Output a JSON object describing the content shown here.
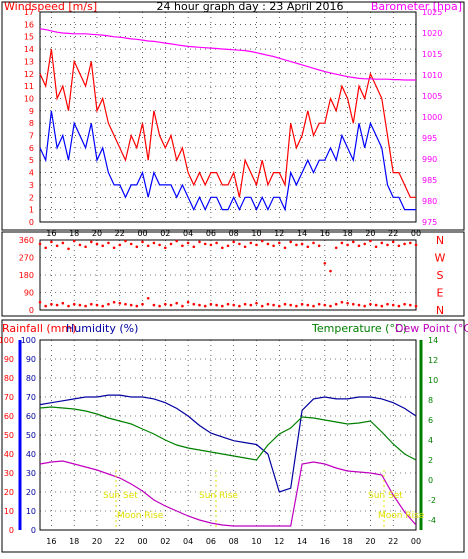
{
  "header": {
    "left_label": "Windspeed [m/s]",
    "center_title": "24 hour graph day : 23 April 2016",
    "right_label": "Barometer [hpa]"
  },
  "colors": {
    "frame": "#000000",
    "grid": "#000000",
    "wind_gust": "#ff0000",
    "wind_avg": "#0000ff",
    "barometer": "#ff00ff",
    "wind_dir": "#ff0000",
    "rain": "#ff0000",
    "humidity": "#0000a0",
    "temperature": "#008000",
    "dew_point": "#c000c0",
    "sun_moon": "#e0e000",
    "left_axis_bar": "#0000ff",
    "right_axis_bar": "#008000"
  },
  "time_ticks": [
    "16",
    "18",
    "20",
    "22",
    "00",
    "02",
    "04",
    "06",
    "08",
    "10",
    "12",
    "14",
    "16",
    "18",
    "20",
    "22",
    "00"
  ],
  "panels": {
    "wind": {
      "left_ticks": [
        "0",
        "1",
        "2",
        "3",
        "4",
        "5",
        "6",
        "7",
        "8",
        "9",
        "10",
        "11",
        "12",
        "13",
        "14",
        "15",
        "16",
        "17"
      ],
      "right_ticks": [
        "975",
        "980",
        "985",
        "990",
        "995",
        "1000",
        "1005",
        "1010",
        "1015",
        "1020",
        "1025"
      ]
    },
    "direction": {
      "left_ticks": [
        "0",
        "90",
        "180",
        "270",
        "360"
      ],
      "compass": [
        "N",
        "W",
        "S",
        "E",
        "N"
      ]
    },
    "lower": {
      "left_label": "Rainfall (mm)",
      "humidity_label": "Humidity (%)",
      "temp_label": "Temperature (°C)",
      "dew_label": "Dew Point (°C)",
      "rain_ticks": [
        "0",
        "10",
        "20",
        "30",
        "40",
        "50",
        "60",
        "70",
        "80",
        "90",
        "100"
      ],
      "hum_ticks": [
        "0",
        "10",
        "20",
        "30",
        "40",
        "50",
        "60",
        "70",
        "80",
        "90",
        "100"
      ],
      "temp_ticks": [
        "-4",
        "-2",
        "0",
        "2",
        "4",
        "6",
        "8",
        "10",
        "12",
        "14"
      ],
      "sun_set_label": "Sun Set",
      "sun_rise_label": "Sun Rise",
      "moon_rise_label": "Moon Rise"
    }
  },
  "chart_data": [
    {
      "type": "line",
      "panel": "wind",
      "x_hours": [
        15,
        15.5,
        16,
        16.5,
        17,
        17.5,
        18,
        18.5,
        19,
        19.5,
        20,
        20.5,
        21,
        21.5,
        22,
        22.5,
        23,
        23.5,
        24,
        24.5,
        25,
        25.5,
        26,
        26.5,
        27,
        27.5,
        28,
        28.5,
        29,
        29.5,
        30,
        30.5,
        31,
        31.5,
        32,
        32.5,
        33,
        33.5,
        34,
        34.5,
        35,
        35.5,
        36,
        36.5,
        37,
        37.5,
        38,
        38.5,
        39,
        39.5,
        40,
        40.5,
        41,
        41.5,
        42,
        42.5,
        43,
        43.5,
        44,
        44.5,
        45,
        45.5,
        46,
        46.5,
        47,
        47.5,
        48
      ],
      "series": [
        {
          "name": "Gust",
          "values": [
            12,
            11,
            14,
            10,
            11,
            9,
            13,
            12,
            11,
            13,
            9,
            10,
            8,
            7,
            6,
            5,
            7,
            6,
            8,
            5,
            9,
            7,
            6,
            7,
            5,
            6,
            4,
            3,
            4,
            3,
            4,
            4,
            3,
            3,
            4,
            2,
            5,
            4,
            3,
            5,
            3,
            4,
            4,
            3,
            8,
            6,
            7,
            9,
            7,
            8,
            8,
            10,
            9,
            11,
            10,
            8,
            11,
            10,
            12,
            11,
            10,
            7,
            4,
            4,
            3,
            2,
            2
          ]
        },
        {
          "name": "Average",
          "values": [
            6,
            5,
            9,
            6,
            7,
            5,
            8,
            7,
            6,
            8,
            5,
            6,
            4,
            3,
            3,
            2,
            3,
            3,
            4,
            2,
            4,
            3,
            3,
            3,
            2,
            3,
            2,
            1,
            2,
            1,
            2,
            2,
            1,
            1,
            2,
            1,
            2,
            2,
            1,
            2,
            1,
            2,
            2,
            1,
            4,
            3,
            4,
            5,
            4,
            5,
            5,
            6,
            5,
            7,
            6,
            5,
            8,
            6,
            8,
            7,
            6,
            3,
            2,
            2,
            1,
            1,
            1
          ]
        },
        {
          "name": "Barometer",
          "axis": "right",
          "values": [
            1021,
            1020.8,
            1020.5,
            1020.2,
            1020,
            1019.9,
            1019.8,
            1019.8,
            1019.8,
            1019.7,
            1019.6,
            1019.5,
            1019.3,
            1019.1,
            1019,
            1018.8,
            1018.6,
            1018.5,
            1018.3,
            1018.1,
            1018,
            1017.8,
            1017.6,
            1017.4,
            1017.2,
            1017,
            1016.8,
            1016.7,
            1016.6,
            1016.5,
            1016.4,
            1016.3,
            1016.2,
            1016.1,
            1016,
            1015.9,
            1015.8,
            1015.6,
            1015.3,
            1015,
            1014.7,
            1014.4,
            1014,
            1013.6,
            1013.2,
            1012.8,
            1012.4,
            1012,
            1011.6,
            1011.2,
            1010.8,
            1010.5,
            1010.2,
            1009.9,
            1009.6,
            1009.4,
            1009.2,
            1009.1,
            1009.1,
            1009,
            1009,
            1009,
            1008.9,
            1008.9,
            1008.8,
            1008.8,
            1008.8
          ]
        }
      ],
      "ylim": [
        0,
        17
      ],
      "y2lim": [
        975,
        1025
      ]
    },
    {
      "type": "scatter",
      "panel": "direction",
      "x_hours": [
        15,
        15.5,
        16,
        16.5,
        17,
        17.5,
        18,
        18.5,
        19,
        19.5,
        20,
        20.5,
        21,
        21.5,
        22,
        22.5,
        23,
        23.5,
        24,
        24.5,
        25,
        25.5,
        26,
        26.5,
        27,
        27.5,
        28,
        28.5,
        29,
        29.5,
        30,
        30.5,
        31,
        31.5,
        32,
        32.5,
        33,
        33.5,
        34,
        34.5,
        35,
        35.5,
        36,
        36.5,
        37,
        37.5,
        38,
        38.5,
        39,
        39.5,
        40,
        40.5,
        41,
        41.5,
        42,
        42.5,
        43,
        43.5,
        44,
        44.5,
        45,
        45.5,
        46,
        46.5,
        47,
        47.5,
        48
      ],
      "series": [
        {
          "name": "Direction",
          "values": [
            340,
            320,
            350,
            330,
            345,
            315,
            355,
            335,
            325,
            350,
            340,
            330,
            345,
            320,
            335,
            355,
            340,
            325,
            350,
            330,
            345,
            335,
            320,
            340,
            355,
            330,
            345,
            325,
            350,
            340,
            335,
            345,
            320,
            330,
            350,
            340,
            325,
            345,
            335,
            355,
            340,
            330,
            345,
            320,
            350,
            335,
            340,
            325,
            345,
            330,
            240,
            200,
            320,
            345,
            335,
            350,
            330,
            340,
            355,
            325,
            345,
            335,
            350,
            330,
            340,
            345,
            335
          ]
        },
        {
          "name": "Direction-low",
          "values": [
            40,
            20,
            30,
            25,
            35,
            20,
            30,
            25,
            20,
            30,
            25,
            20,
            30,
            40,
            35,
            30,
            25,
            20,
            30,
            60,
            25,
            20,
            30,
            25,
            35,
            20,
            40,
            30,
            25,
            20,
            30,
            25,
            20,
            30,
            25,
            20,
            30,
            25,
            35,
            20,
            30,
            25,
            20,
            30,
            25,
            20,
            30,
            25,
            20,
            30,
            25,
            20,
            30,
            40,
            35,
            30,
            25,
            20,
            30,
            25,
            20,
            30,
            25,
            20,
            30,
            25,
            20
          ]
        }
      ],
      "ylim": [
        0,
        360
      ]
    },
    {
      "type": "line",
      "panel": "lower",
      "x_hours": [
        15,
        16,
        17,
        18,
        19,
        20,
        21,
        22,
        23,
        24,
        25,
        26,
        27,
        28,
        29,
        30,
        31,
        32,
        33,
        34,
        35,
        36,
        37,
        38,
        39,
        40,
        41,
        42,
        43,
        44,
        45,
        46,
        47,
        48
      ],
      "series": [
        {
          "name": "Humidity",
          "axis": "hum",
          "values": [
            66,
            67,
            68,
            69,
            70,
            70,
            71,
            71,
            70,
            70,
            69,
            67,
            64,
            60,
            55,
            51,
            49,
            47,
            46,
            45,
            40,
            20,
            22,
            63,
            69,
            70,
            69,
            69,
            70,
            70,
            69,
            67,
            64,
            60
          ]
        },
        {
          "name": "Temperature",
          "axis": "temp",
          "values": [
            7.2,
            7.3,
            7.2,
            7.1,
            6.9,
            6.6,
            6.2,
            5.9,
            5.6,
            5.1,
            4.6,
            4.0,
            3.5,
            3.2,
            3.0,
            2.8,
            2.6,
            2.4,
            2.2,
            2.0,
            3.5,
            4.6,
            5.2,
            6.3,
            6.2,
            6.0,
            5.8,
            5.6,
            5.7,
            5.9,
            4.8,
            3.6,
            2.6,
            2.0
          ]
        },
        {
          "name": "Dew Point",
          "axis": "temp",
          "values": [
            1.6,
            1.8,
            1.9,
            1.6,
            1.3,
            1.0,
            0.6,
            0.2,
            -0.4,
            -1.1,
            -2.0,
            -2.6,
            -3.1,
            -3.6,
            -4.0,
            -4.3,
            -4.5,
            -4.6,
            -4.6,
            -4.6,
            -4.6,
            -4.6,
            -4.6,
            1.6,
            1.8,
            1.6,
            1.2,
            0.9,
            0.8,
            0.7,
            0.5,
            -1.5,
            -3.2,
            -4.5
          ]
        }
      ],
      "ylim": [
        0,
        100
      ],
      "y2lim": [
        -5,
        14
      ]
    }
  ]
}
